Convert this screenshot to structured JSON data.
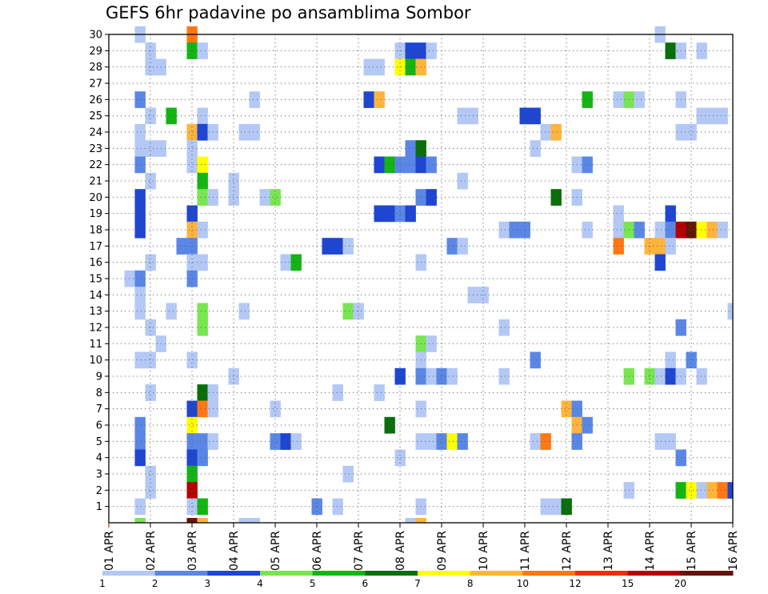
{
  "chart_data": {
    "type": "heatmap",
    "title": "GEFS 6hr padavine po ansamblima Sombor",
    "xlabel": "",
    "ylabel": "",
    "x_tick_labels": [
      "01 APR",
      "02 APR",
      "03 APR",
      "04 APR",
      "05 APR",
      "06 APR",
      "07 APR",
      "08 APR",
      "09 APR",
      "10 APR",
      "11 APR",
      "12 APR",
      "13 APR",
      "14 APR",
      "15 APR",
      "16 APR"
    ],
    "x_unit": "6-hour step",
    "x_range": [
      0,
      60
    ],
    "y_tick_labels": [
      "1",
      "2",
      "3",
      "4",
      "5",
      "6",
      "7",
      "8",
      "9",
      "10",
      "11",
      "12",
      "13",
      "14",
      "15",
      "16",
      "17",
      "18",
      "19",
      "20",
      "21",
      "22",
      "23",
      "24",
      "25",
      "26",
      "27",
      "28",
      "29",
      "30"
    ],
    "y_range": [
      0,
      30
    ],
    "grid": true,
    "colorbar": {
      "labels": [
        "1",
        "2",
        "3",
        "4",
        "5",
        "6",
        "7",
        "8",
        "10",
        "12",
        "15",
        "20"
      ],
      "colors": [
        "#b4c8f5",
        "#5a87e6",
        "#1e46d2",
        "#78e650",
        "#14b414",
        "#0a6e0a",
        "#ffff00",
        "#ffb43c",
        "#ff7814",
        "#e6320a",
        "#b40000",
        "#641400"
      ]
    },
    "cells_note": "each cell: [time_step, member, class]; class 1..12 indexes colorbar.colors; member 0 = control row below member 1",
    "cells": [
      [
        3,
        30,
        1
      ],
      [
        8,
        30,
        9
      ],
      [
        53,
        30,
        1
      ],
      [
        4,
        29,
        1
      ],
      [
        8,
        29,
        5
      ],
      [
        9,
        29,
        1
      ],
      [
        28,
        29,
        1
      ],
      [
        29,
        29,
        3
      ],
      [
        30,
        29,
        3
      ],
      [
        31,
        29,
        1
      ],
      [
        54,
        29,
        6
      ],
      [
        55,
        29,
        1
      ],
      [
        57,
        29,
        1
      ],
      [
        4,
        28,
        1
      ],
      [
        5,
        28,
        1
      ],
      [
        25,
        28,
        1
      ],
      [
        26,
        28,
        1
      ],
      [
        28,
        28,
        7
      ],
      [
        29,
        28,
        5
      ],
      [
        30,
        28,
        8
      ],
      [
        3,
        26,
        2
      ],
      [
        14,
        26,
        1
      ],
      [
        25,
        26,
        3
      ],
      [
        26,
        26,
        8
      ],
      [
        46,
        26,
        5
      ],
      [
        49,
        26,
        1
      ],
      [
        50,
        26,
        4
      ],
      [
        51,
        26,
        1
      ],
      [
        55,
        26,
        1
      ],
      [
        4,
        25,
        1
      ],
      [
        6,
        25,
        5
      ],
      [
        9,
        25,
        1
      ],
      [
        34,
        25,
        1
      ],
      [
        35,
        25,
        1
      ],
      [
        40,
        25,
        3
      ],
      [
        41,
        25,
        3
      ],
      [
        57,
        25,
        1
      ],
      [
        58,
        25,
        1
      ],
      [
        59,
        25,
        1
      ],
      [
        3,
        24,
        1
      ],
      [
        8,
        24,
        8
      ],
      [
        9,
        24,
        3
      ],
      [
        10,
        24,
        1
      ],
      [
        13,
        24,
        1
      ],
      [
        14,
        24,
        1
      ],
      [
        42,
        24,
        1
      ],
      [
        43,
        24,
        8
      ],
      [
        55,
        24,
        1
      ],
      [
        56,
        24,
        1
      ],
      [
        3,
        23,
        1
      ],
      [
        4,
        23,
        1
      ],
      [
        5,
        23,
        1
      ],
      [
        8,
        23,
        1
      ],
      [
        29,
        23,
        2
      ],
      [
        30,
        23,
        6
      ],
      [
        41,
        23,
        1
      ],
      [
        3,
        22,
        2
      ],
      [
        8,
        22,
        1
      ],
      [
        9,
        22,
        7
      ],
      [
        26,
        22,
        3
      ],
      [
        27,
        22,
        5
      ],
      [
        28,
        22,
        2
      ],
      [
        29,
        22,
        2
      ],
      [
        30,
        22,
        3
      ],
      [
        31,
        22,
        2
      ],
      [
        45,
        22,
        1
      ],
      [
        46,
        22,
        2
      ],
      [
        4,
        21,
        1
      ],
      [
        9,
        21,
        5
      ],
      [
        12,
        21,
        1
      ],
      [
        34,
        21,
        1
      ],
      [
        3,
        20,
        3
      ],
      [
        9,
        20,
        4
      ],
      [
        10,
        20,
        1
      ],
      [
        12,
        20,
        1
      ],
      [
        15,
        20,
        1
      ],
      [
        16,
        20,
        4
      ],
      [
        30,
        20,
        2
      ],
      [
        31,
        20,
        3
      ],
      [
        43,
        20,
        6
      ],
      [
        45,
        20,
        1
      ],
      [
        3,
        19,
        3
      ],
      [
        8,
        19,
        3
      ],
      [
        26,
        19,
        3
      ],
      [
        27,
        19,
        3
      ],
      [
        28,
        19,
        2
      ],
      [
        29,
        19,
        3
      ],
      [
        49,
        19,
        1
      ],
      [
        54,
        19,
        3
      ],
      [
        3,
        18,
        3
      ],
      [
        8,
        18,
        8
      ],
      [
        9,
        18,
        1
      ],
      [
        38,
        18,
        1
      ],
      [
        39,
        18,
        2
      ],
      [
        40,
        18,
        2
      ],
      [
        46,
        18,
        1
      ],
      [
        49,
        18,
        1
      ],
      [
        50,
        18,
        4
      ],
      [
        51,
        18,
        2
      ],
      [
        53,
        18,
        1
      ],
      [
        54,
        18,
        2
      ],
      [
        55,
        18,
        11
      ],
      [
        56,
        18,
        12
      ],
      [
        57,
        18,
        7
      ],
      [
        58,
        18,
        8
      ],
      [
        59,
        18,
        1
      ],
      [
        7,
        17,
        2
      ],
      [
        8,
        17,
        2
      ],
      [
        21,
        17,
        3
      ],
      [
        22,
        17,
        3
      ],
      [
        23,
        17,
        1
      ],
      [
        33,
        17,
        2
      ],
      [
        34,
        17,
        1
      ],
      [
        49,
        17,
        9
      ],
      [
        52,
        17,
        8
      ],
      [
        53,
        17,
        8
      ],
      [
        54,
        17,
        1
      ],
      [
        4,
        16,
        1
      ],
      [
        8,
        16,
        1
      ],
      [
        9,
        16,
        1
      ],
      [
        17,
        16,
        1
      ],
      [
        18,
        16,
        5
      ],
      [
        30,
        16,
        1
      ],
      [
        53,
        16,
        3
      ],
      [
        2,
        15,
        1
      ],
      [
        3,
        15,
        2
      ],
      [
        8,
        15,
        2
      ],
      [
        3,
        14,
        1
      ],
      [
        35,
        14,
        1
      ],
      [
        36,
        14,
        1
      ],
      [
        3,
        13,
        1
      ],
      [
        6,
        13,
        1
      ],
      [
        9,
        13,
        4
      ],
      [
        13,
        13,
        1
      ],
      [
        23,
        13,
        4
      ],
      [
        24,
        13,
        1
      ],
      [
        60,
        13,
        1
      ],
      [
        4,
        12,
        1
      ],
      [
        9,
        12,
        4
      ],
      [
        38,
        12,
        1
      ],
      [
        55,
        12,
        2
      ],
      [
        5,
        11,
        1
      ],
      [
        30,
        11,
        4
      ],
      [
        31,
        11,
        1
      ],
      [
        3,
        10,
        1
      ],
      [
        4,
        10,
        1
      ],
      [
        8,
        10,
        1
      ],
      [
        30,
        10,
        1
      ],
      [
        41,
        10,
        2
      ],
      [
        54,
        10,
        1
      ],
      [
        56,
        10,
        2
      ],
      [
        12,
        9,
        1
      ],
      [
        28,
        9,
        3
      ],
      [
        30,
        9,
        2
      ],
      [
        31,
        9,
        1
      ],
      [
        32,
        9,
        2
      ],
      [
        33,
        9,
        1
      ],
      [
        38,
        9,
        1
      ],
      [
        50,
        9,
        4
      ],
      [
        52,
        9,
        4
      ],
      [
        53,
        9,
        1
      ],
      [
        54,
        9,
        3
      ],
      [
        55,
        9,
        1
      ],
      [
        57,
        9,
        1
      ],
      [
        4,
        8,
        1
      ],
      [
        9,
        8,
        6
      ],
      [
        10,
        8,
        1
      ],
      [
        22,
        8,
        1
      ],
      [
        26,
        8,
        1
      ],
      [
        8,
        7,
        3
      ],
      [
        9,
        7,
        9
      ],
      [
        10,
        7,
        1
      ],
      [
        16,
        7,
        1
      ],
      [
        30,
        7,
        1
      ],
      [
        44,
        7,
        8
      ],
      [
        45,
        7,
        2
      ],
      [
        3,
        6,
        2
      ],
      [
        8,
        6,
        7
      ],
      [
        27,
        6,
        6
      ],
      [
        45,
        6,
        8
      ],
      [
        46,
        6,
        2
      ],
      [
        3,
        5,
        2
      ],
      [
        8,
        5,
        2
      ],
      [
        9,
        5,
        2
      ],
      [
        10,
        5,
        1
      ],
      [
        16,
        5,
        2
      ],
      [
        17,
        5,
        3
      ],
      [
        18,
        5,
        1
      ],
      [
        30,
        5,
        1
      ],
      [
        31,
        5,
        1
      ],
      [
        32,
        5,
        2
      ],
      [
        33,
        5,
        7
      ],
      [
        34,
        5,
        2
      ],
      [
        41,
        5,
        1
      ],
      [
        42,
        5,
        9
      ],
      [
        45,
        5,
        2
      ],
      [
        53,
        5,
        1
      ],
      [
        54,
        5,
        1
      ],
      [
        3,
        4,
        3
      ],
      [
        8,
        4,
        3
      ],
      [
        9,
        4,
        2
      ],
      [
        28,
        4,
        1
      ],
      [
        55,
        4,
        2
      ],
      [
        4,
        3,
        1
      ],
      [
        8,
        3,
        5
      ],
      [
        23,
        3,
        1
      ],
      [
        4,
        2,
        1
      ],
      [
        8,
        2,
        11
      ],
      [
        50,
        2,
        1
      ],
      [
        55,
        2,
        5
      ],
      [
        56,
        2,
        7
      ],
      [
        57,
        2,
        1
      ],
      [
        58,
        2,
        8
      ],
      [
        59,
        2,
        9
      ],
      [
        60,
        2,
        3
      ],
      [
        3,
        1,
        1
      ],
      [
        8,
        1,
        1
      ],
      [
        9,
        1,
        5
      ],
      [
        20,
        1,
        2
      ],
      [
        22,
        1,
        1
      ],
      [
        30,
        1,
        1
      ],
      [
        42,
        1,
        1
      ],
      [
        43,
        1,
        1
      ],
      [
        44,
        1,
        6
      ],
      [
        3,
        0,
        4
      ],
      [
        8,
        0,
        12
      ],
      [
        9,
        0,
        8
      ],
      [
        13,
        0,
        1
      ],
      [
        14,
        0,
        1
      ],
      [
        29,
        0,
        1
      ],
      [
        30,
        0,
        8
      ]
    ]
  }
}
